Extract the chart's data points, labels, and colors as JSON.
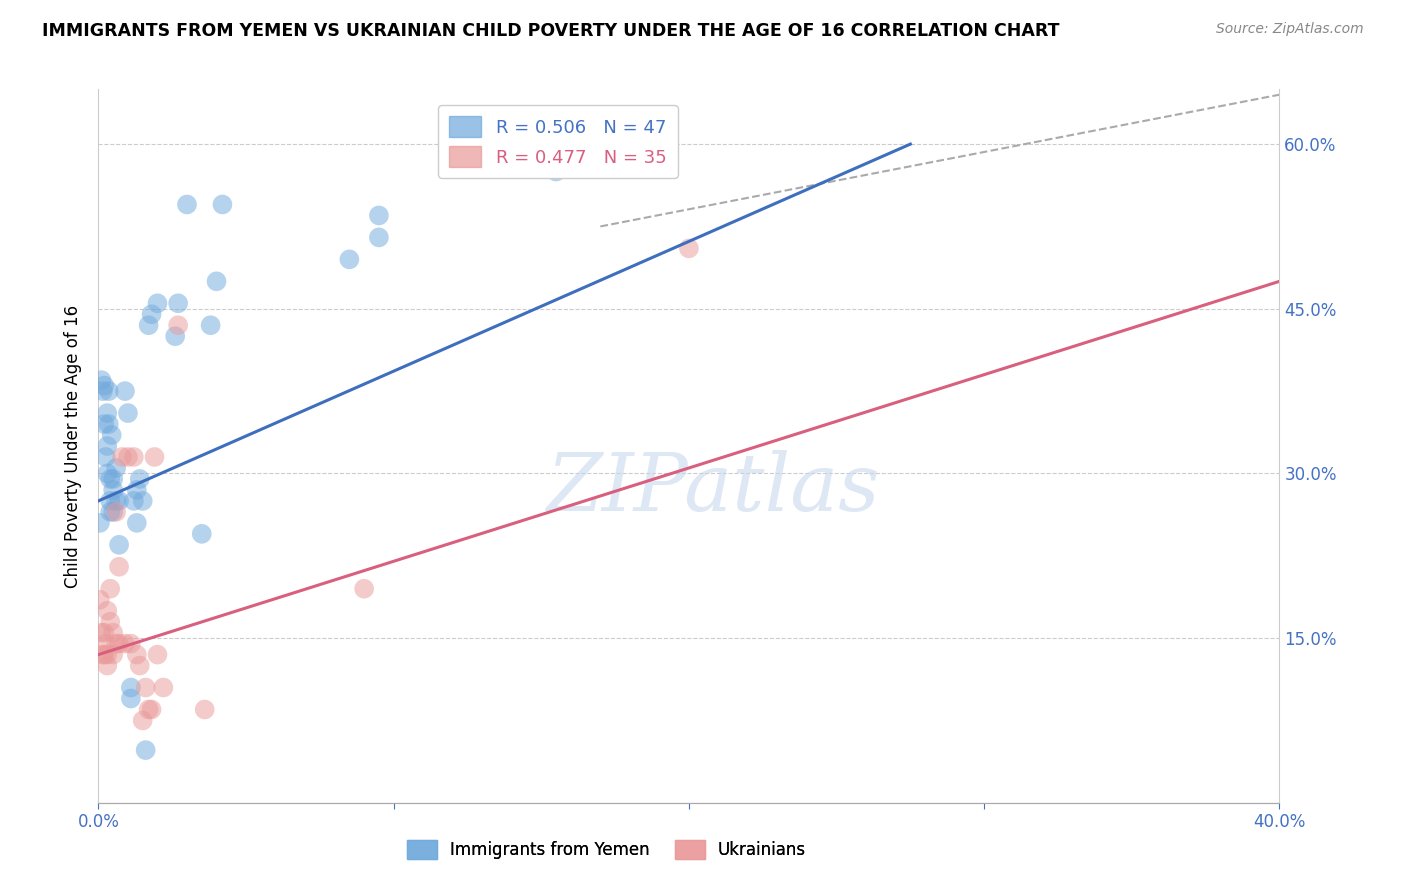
{
  "title": "IMMIGRANTS FROM YEMEN VS UKRAINIAN CHILD POVERTY UNDER THE AGE OF 16 CORRELATION CHART",
  "source": "Source: ZipAtlas.com",
  "ylabel": "Child Poverty Under the Age of 16",
  "x_min": 0.0,
  "x_max": 0.4,
  "y_min": 0.0,
  "y_max": 0.65,
  "x_ticks": [
    0.0,
    0.1,
    0.2,
    0.3,
    0.4
  ],
  "x_tick_labels": [
    "0.0%",
    "",
    "",
    "",
    "40.0%"
  ],
  "y_ticks": [
    0.0,
    0.15,
    0.3,
    0.45,
    0.6
  ],
  "y_tick_labels": [
    "",
    "15.0%",
    "30.0%",
    "45.0%",
    "60.0%"
  ],
  "yemen_color": "#6fa8dc",
  "ukraine_color": "#ea9999",
  "watermark": "ZIPatlas",
  "yemen_scatter": [
    [
      0.0005,
      0.255
    ],
    [
      0.001,
      0.385
    ],
    [
      0.0015,
      0.375
    ],
    [
      0.002,
      0.38
    ],
    [
      0.002,
      0.345
    ],
    [
      0.0025,
      0.315
    ],
    [
      0.003,
      0.355
    ],
    [
      0.003,
      0.325
    ],
    [
      0.003,
      0.3
    ],
    [
      0.0035,
      0.375
    ],
    [
      0.0035,
      0.345
    ],
    [
      0.004,
      0.275
    ],
    [
      0.004,
      0.265
    ],
    [
      0.004,
      0.295
    ],
    [
      0.0045,
      0.335
    ],
    [
      0.005,
      0.285
    ],
    [
      0.005,
      0.295
    ],
    [
      0.005,
      0.265
    ],
    [
      0.006,
      0.275
    ],
    [
      0.006,
      0.305
    ],
    [
      0.007,
      0.275
    ],
    [
      0.007,
      0.235
    ],
    [
      0.009,
      0.375
    ],
    [
      0.01,
      0.355
    ],
    [
      0.011,
      0.095
    ],
    [
      0.011,
      0.105
    ],
    [
      0.012,
      0.275
    ],
    [
      0.013,
      0.255
    ],
    [
      0.013,
      0.285
    ],
    [
      0.014,
      0.295
    ],
    [
      0.015,
      0.275
    ],
    [
      0.016,
      0.048
    ],
    [
      0.017,
      0.435
    ],
    [
      0.018,
      0.445
    ],
    [
      0.02,
      0.455
    ],
    [
      0.026,
      0.425
    ],
    [
      0.027,
      0.455
    ],
    [
      0.03,
      0.545
    ],
    [
      0.035,
      0.245
    ],
    [
      0.038,
      0.435
    ],
    [
      0.04,
      0.475
    ],
    [
      0.042,
      0.545
    ],
    [
      0.085,
      0.495
    ],
    [
      0.095,
      0.515
    ],
    [
      0.155,
      0.575
    ],
    [
      0.095,
      0.535
    ]
  ],
  "ukraine_scatter": [
    [
      0.0005,
      0.185
    ],
    [
      0.001,
      0.155
    ],
    [
      0.0015,
      0.135
    ],
    [
      0.002,
      0.155
    ],
    [
      0.002,
      0.135
    ],
    [
      0.0025,
      0.145
    ],
    [
      0.003,
      0.175
    ],
    [
      0.003,
      0.135
    ],
    [
      0.003,
      0.125
    ],
    [
      0.004,
      0.195
    ],
    [
      0.004,
      0.165
    ],
    [
      0.005,
      0.155
    ],
    [
      0.005,
      0.135
    ],
    [
      0.006,
      0.265
    ],
    [
      0.006,
      0.145
    ],
    [
      0.007,
      0.145
    ],
    [
      0.007,
      0.215
    ],
    [
      0.008,
      0.315
    ],
    [
      0.009,
      0.145
    ],
    [
      0.01,
      0.315
    ],
    [
      0.011,
      0.145
    ],
    [
      0.012,
      0.315
    ],
    [
      0.013,
      0.135
    ],
    [
      0.014,
      0.125
    ],
    [
      0.015,
      0.075
    ],
    [
      0.016,
      0.105
    ],
    [
      0.017,
      0.085
    ],
    [
      0.018,
      0.085
    ],
    [
      0.019,
      0.315
    ],
    [
      0.02,
      0.135
    ],
    [
      0.022,
      0.105
    ],
    [
      0.027,
      0.435
    ],
    [
      0.036,
      0.085
    ],
    [
      0.09,
      0.195
    ],
    [
      0.2,
      0.505
    ]
  ],
  "yemen_line_x": [
    0.0,
    0.275
  ],
  "yemen_line_y": [
    0.275,
    0.6
  ],
  "ukraine_line_x": [
    0.0,
    0.4
  ],
  "ukraine_line_y": [
    0.135,
    0.475
  ],
  "dash_line_x": [
    0.17,
    0.4
  ],
  "dash_line_y": [
    0.525,
    0.645
  ],
  "grid_color": "#cccccc",
  "title_fontsize": 13
}
